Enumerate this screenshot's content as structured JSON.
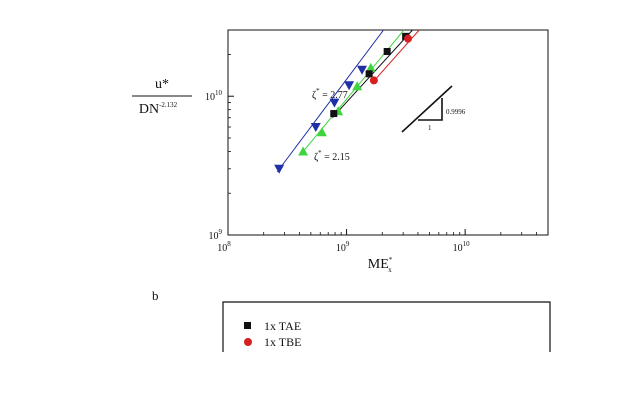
{
  "panel_b_label": "b",
  "chart_data": [
    {
      "type": "scatter",
      "ylabel": {
        "top": "u*",
        "bottom_base": "DN",
        "bottom_exp": "-2.132"
      },
      "xlabel": {
        "base": "ME",
        "sup": "*",
        "sub": "x"
      },
      "xscale": "log",
      "yscale": "log",
      "xlim": [
        100000000,
        50000000000
      ],
      "ylim": [
        1000000000,
        30000000000
      ],
      "xticks": [
        {
          "value": 100000000,
          "base": "10",
          "exp": "8"
        },
        {
          "value": 1000000000,
          "base": "10",
          "exp": "9"
        },
        {
          "value": 10000000000,
          "base": "10",
          "exp": "10"
        }
      ],
      "yticks": [
        {
          "value": 1000000000,
          "base": "10",
          "exp": "9"
        },
        {
          "value": 10000000000,
          "base": "10",
          "exp": "10"
        }
      ],
      "grid": false,
      "series": [
        {
          "marker": "triangle-down",
          "color": "#1f2fa8",
          "points": [
            {
              "x": 270000000,
              "y": 3000000000
            },
            {
              "x": 550000000,
              "y": 6000000000
            },
            {
              "x": 790000000,
              "y": 9000000000
            },
            {
              "x": 1050000000,
              "y": 12000000000
            },
            {
              "x": 1350000000,
              "y": 15500000000
            }
          ]
        },
        {
          "marker": "triangle-up",
          "color": "#3fd43f",
          "points": [
            {
              "x": 430000000,
              "y": 4000000000
            },
            {
              "x": 620000000,
              "y": 5500000000
            },
            {
              "x": 850000000,
              "y": 7800000000
            },
            {
              "x": 1230000000,
              "y": 11800000000
            },
            {
              "x": 1600000000,
              "y": 16000000000
            }
          ]
        },
        {
          "marker": "square",
          "color": "#111111",
          "points": [
            {
              "x": 780000000,
              "y": 7500000000
            },
            {
              "x": 1550000000,
              "y": 14500000000
            },
            {
              "x": 2200000000,
              "y": 21000000000
            },
            {
              "x": 3150000000,
              "y": 27000000000
            }
          ]
        },
        {
          "marker": "circle",
          "color": "#d42020",
          "points": [
            {
              "x": 1700000000,
              "y": 13000000000
            },
            {
              "x": 3300000000,
              "y": 26000000000
            }
          ]
        }
      ],
      "fit_lines": [
        {
          "color": "#1f2fa8",
          "from": {
            "x": 260000000,
            "y": 2850000000
          },
          "to": {
            "x": 2050000000,
            "y": 30000000000
          }
        },
        {
          "color": "#3fd43f",
          "from": {
            "x": 420000000,
            "y": 3900000000
          },
          "to": {
            "x": 3050000000,
            "y": 30000000000
          }
        },
        {
          "color": "#111111",
          "from": {
            "x": 760000000,
            "y": 7000000000
          },
          "to": {
            "x": 3600000000,
            "y": 30000000000
          }
        },
        {
          "color": "#d42020",
          "from": {
            "x": 1650000000,
            "y": 12500000000
          },
          "to": {
            "x": 4100000000,
            "y": 30000000000
          }
        }
      ],
      "annotations": [
        {
          "label": "ζ",
          "sup": "*",
          "value": "= 2.77"
        },
        {
          "label": "ζ",
          "sup": "*",
          "value": "= 2.15"
        }
      ],
      "slope_triangle": {
        "vertical": "0.9996",
        "horizontal": "1"
      }
    },
    {
      "type": "scatter",
      "legend": [
        {
          "label": "1x TAE",
          "marker": "square",
          "color": "#111111"
        },
        {
          "label": "1x TBE",
          "marker": "circle",
          "color": "#d42020"
        }
      ]
    }
  ]
}
